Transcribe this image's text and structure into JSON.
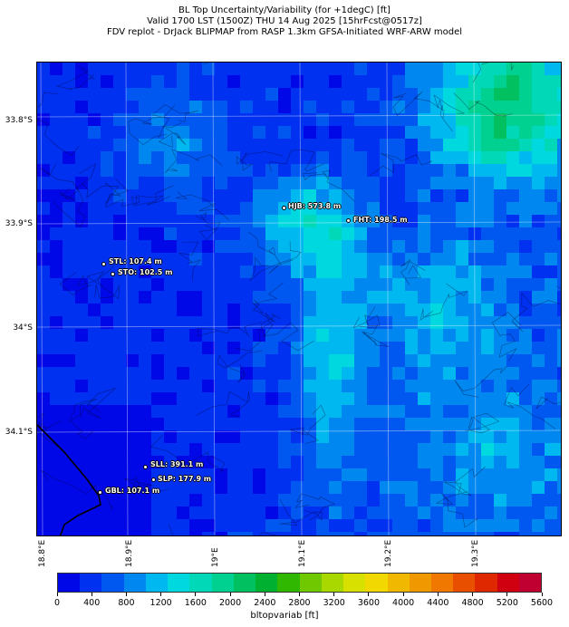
{
  "titles": [
    "BL Top Uncertainty/Variability (for +1degC) [ft]",
    "Valid 1700 LST (1500Z) THU 14 Aug 2025 [15hrFcst@0517z]",
    "FDV replot - DrJack BLIPMAP from RASP 1.3km GFSA-Initiated WRF-ARW model"
  ],
  "lat_labels": [
    "33.8°S",
    "33.9°S",
    "34°S",
    "34.1°S"
  ],
  "lon_labels": [
    "18.8°E",
    "18.9°E",
    "19°E",
    "19.1°E",
    "19.2°E",
    "19.3°E"
  ],
  "stations": [
    {
      "id": "HJB",
      "text": "HJB: 573.8 m"
    },
    {
      "id": "FHT",
      "text": "FHT: 198.5 m"
    },
    {
      "id": "STL",
      "text": "STL: 107.4 m"
    },
    {
      "id": "STO",
      "text": "STO: 102.5 m"
    },
    {
      "id": "SLL",
      "text": "SLL: 391.1 m"
    },
    {
      "id": "SLP",
      "text": "SLP: 177.9 m"
    },
    {
      "id": "GBL",
      "text": "GBL: 107.1 m"
    }
  ],
  "colorbar": {
    "label": "bltopvariab [ft]",
    "ticks": [
      "0",
      "400",
      "800",
      "1200",
      "1600",
      "2000",
      "2400",
      "2800",
      "3200",
      "3600",
      "4000",
      "4400",
      "4800",
      "5200",
      "5600"
    ],
    "colors": [
      "#0008e8",
      "#0030f0",
      "#0058f0",
      "#0088f0",
      "#00b8f0",
      "#00d8e0",
      "#00d8b8",
      "#00d090",
      "#00c060",
      "#00b030",
      "#30b800",
      "#70c800",
      "#a8d800",
      "#d8e000",
      "#f0d800",
      "#f0b800",
      "#f09800",
      "#f07800",
      "#e85000",
      "#e02800",
      "#d00010",
      "#c00030"
    ]
  }
}
